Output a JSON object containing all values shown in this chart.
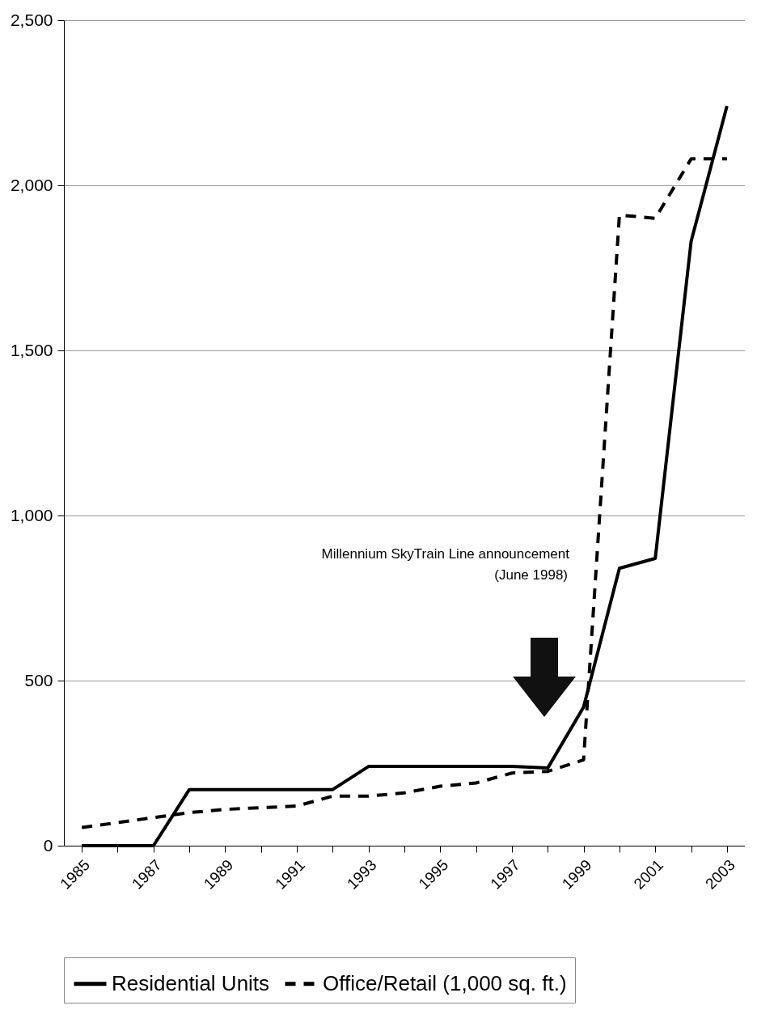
{
  "chart_data": {
    "type": "line",
    "categories": [
      "1985",
      null,
      "1987",
      null,
      "1989",
      null,
      "1991",
      null,
      "1993",
      null,
      "1995",
      null,
      "1997",
      null,
      "1999",
      null,
      "2001",
      null,
      "2003"
    ],
    "series": [
      {
        "name": "Residential Units",
        "color": "#000000",
        "line_style": "solid",
        "values": [
          0,
          0,
          0,
          170,
          170,
          170,
          170,
          170,
          240,
          240,
          240,
          240,
          240,
          235,
          420,
          840,
          870,
          1830,
          2240
        ]
      },
      {
        "name": "Office/Retail (1,000 sq. ft.)",
        "color": "#000000",
        "line_style": "dashed",
        "values": [
          55,
          70,
          85,
          100,
          110,
          115,
          120,
          150,
          150,
          160,
          180,
          190,
          220,
          225,
          260,
          1910,
          1900,
          2080,
          2080
        ]
      }
    ],
    "ylim": [
      0,
      2500
    ],
    "yticks": [
      0,
      {
        "value": 500,
        "label": "500"
      },
      {
        "value": 1000,
        "label": "1,000"
      },
      {
        "value": 1500,
        "label": "1,500"
      },
      {
        "value": 2000,
        "label": "2,000"
      },
      {
        "value": 2500,
        "label": "2,500"
      }
    ],
    "grid": "y",
    "legend": "bottom",
    "marker": "none",
    "annotations": [
      "Millennium SkyTrain Line announcement",
      "(June 1998)"
    ]
  }
}
